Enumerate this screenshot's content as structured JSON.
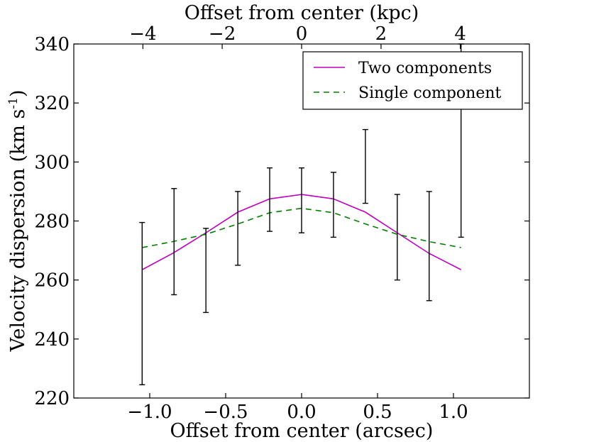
{
  "chart_data": {
    "type": "line",
    "xlabel": "Offset from center (arcsec)",
    "xlabel_top": "Offset from center (kpc)",
    "ylabel": "Velocity dispersion (km s",
    "ylabel_sup": "-1",
    "ylabel_close": ")",
    "xlim": [
      -1.5,
      1.5
    ],
    "ylim": [
      220,
      340
    ],
    "x_ticks": [
      -1.0,
      -0.5,
      0.0,
      0.5,
      1.0
    ],
    "x_tick_labels": [
      "−1.0",
      "−0.5",
      "0.0",
      "0.5",
      "1.0"
    ],
    "y_ticks": [
      220,
      240,
      260,
      280,
      300,
      320,
      340
    ],
    "y_tick_labels": [
      "220",
      "240",
      "260",
      "280",
      "300",
      "320",
      "340"
    ],
    "top_ticks_arcsec": [
      -1.045,
      -0.523,
      0.0,
      0.523,
      1.045
    ],
    "top_tick_labels": [
      "−4",
      "−2",
      "0",
      "2",
      "4"
    ],
    "legend_position": "top-right",
    "series": [
      {
        "name": "Two components",
        "style": "solid",
        "color": "#bf00bf",
        "x": [
          -1.05,
          -0.85,
          -0.63,
          -0.42,
          -0.21,
          0.0,
          0.21,
          0.42,
          0.63,
          0.84,
          1.05
        ],
        "y": [
          263.5,
          269,
          276,
          283,
          287.5,
          289,
          287.5,
          283,
          276,
          269,
          263.5
        ]
      },
      {
        "name": "Single component",
        "style": "dashed",
        "color": "#007f00",
        "x": [
          -1.05,
          -0.85,
          -0.63,
          -0.42,
          -0.21,
          0.0,
          0.21,
          0.42,
          0.63,
          0.84,
          1.05
        ],
        "y": [
          271,
          273,
          275.5,
          279,
          282.8,
          284.3,
          282.8,
          279,
          275.5,
          273,
          271
        ]
      }
    ],
    "error_bars": {
      "color": "#000000",
      "points": [
        {
          "x": -1.05,
          "low": 224.5,
          "high": 279.5
        },
        {
          "x": -0.84,
          "low": 255,
          "high": 291
        },
        {
          "x": -0.63,
          "low": 249,
          "high": 277.5
        },
        {
          "x": -0.42,
          "low": 265,
          "high": 290
        },
        {
          "x": -0.21,
          "low": 276.5,
          "high": 298
        },
        {
          "x": 0.0,
          "low": 276,
          "high": 298
        },
        {
          "x": 0.21,
          "low": 274.5,
          "high": 296.5
        },
        {
          "x": 0.42,
          "low": 286,
          "high": 311
        },
        {
          "x": 0.63,
          "low": 260,
          "high": 289
        },
        {
          "x": 0.84,
          "low": 253,
          "high": 290
        },
        {
          "x": 1.05,
          "low": 274.5,
          "high": 340
        }
      ]
    }
  }
}
